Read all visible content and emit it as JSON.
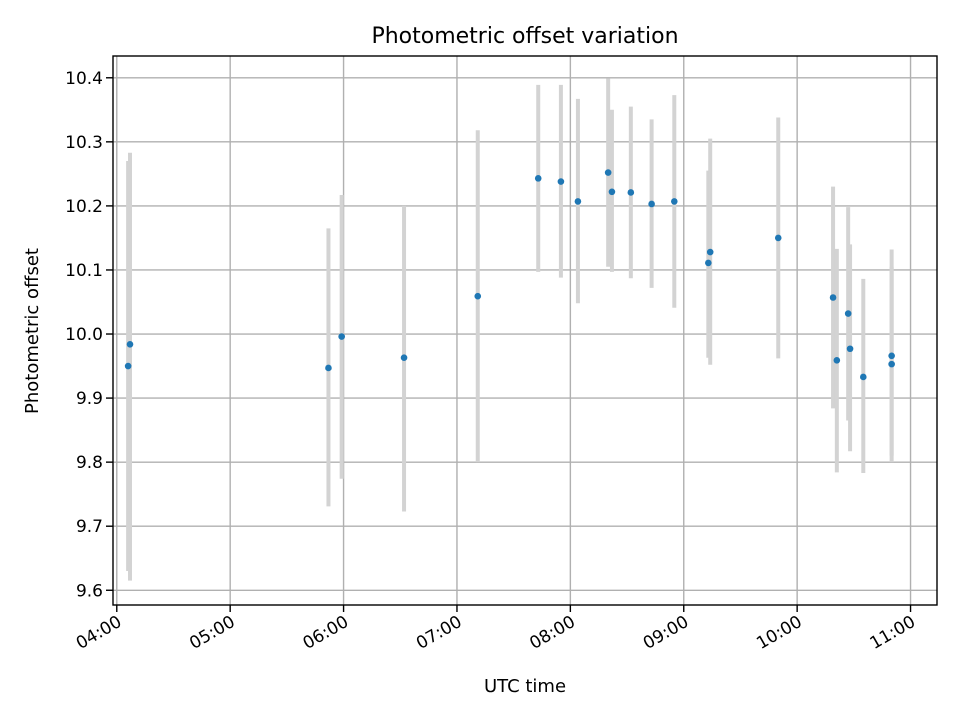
{
  "chart_data": {
    "type": "scatter",
    "title": "Photometric offset variation",
    "xlabel": "UTC time",
    "ylabel": "Photometric offset",
    "xlim": [
      "03:58",
      "11:14"
    ],
    "ylim": [
      9.577,
      10.434
    ],
    "grid": true,
    "xticks": [
      "04:00",
      "05:00",
      "06:00",
      "07:00",
      "08:00",
      "09:00",
      "10:00",
      "11:00"
    ],
    "yticks": [
      "9.6",
      "9.7",
      "9.8",
      "9.9",
      "10.0",
      "10.1",
      "10.2",
      "10.3",
      "10.4"
    ],
    "series": [
      {
        "marker_color": "#1f77b4",
        "errorbar_color": "#d3d3d3",
        "points": [
          {
            "x": "04:06",
            "y": 9.95,
            "ylo": 9.63,
            "yhi": 10.27
          },
          {
            "x": "04:07",
            "y": 9.984,
            "ylo": 9.615,
            "yhi": 10.283
          },
          {
            "x": "05:52",
            "y": 9.947,
            "ylo": 9.731,
            "yhi": 10.165
          },
          {
            "x": "05:59",
            "y": 9.996,
            "ylo": 9.774,
            "yhi": 10.217
          },
          {
            "x": "06:32",
            "y": 9.963,
            "ylo": 9.723,
            "yhi": 10.2
          },
          {
            "x": "07:11",
            "y": 10.059,
            "ylo": 9.8,
            "yhi": 10.318
          },
          {
            "x": "07:43",
            "y": 10.243,
            "ylo": 10.097,
            "yhi": 10.389
          },
          {
            "x": "07:55",
            "y": 10.238,
            "ylo": 10.088,
            "yhi": 10.389
          },
          {
            "x": "08:04",
            "y": 10.207,
            "ylo": 10.048,
            "yhi": 10.367
          },
          {
            "x": "08:20",
            "y": 10.252,
            "ylo": 10.105,
            "yhi": 10.399
          },
          {
            "x": "08:22",
            "y": 10.222,
            "ylo": 10.097,
            "yhi": 10.35
          },
          {
            "x": "08:32",
            "y": 10.221,
            "ylo": 10.087,
            "yhi": 10.355
          },
          {
            "x": "08:43",
            "y": 10.203,
            "ylo": 10.072,
            "yhi": 10.335
          },
          {
            "x": "08:55",
            "y": 10.207,
            "ylo": 10.041,
            "yhi": 10.373
          },
          {
            "x": "09:13",
            "y": 10.111,
            "ylo": 9.963,
            "yhi": 10.255
          },
          {
            "x": "09:14",
            "y": 10.128,
            "ylo": 9.952,
            "yhi": 10.305
          },
          {
            "x": "09:50",
            "y": 10.15,
            "ylo": 9.962,
            "yhi": 10.338
          },
          {
            "x": "10:19",
            "y": 10.057,
            "ylo": 9.884,
            "yhi": 10.23
          },
          {
            "x": "10:21",
            "y": 9.959,
            "ylo": 9.784,
            "yhi": 10.133
          },
          {
            "x": "10:27",
            "y": 10.032,
            "ylo": 9.865,
            "yhi": 10.198
          },
          {
            "x": "10:28",
            "y": 9.977,
            "ylo": 9.817,
            "yhi": 10.14
          },
          {
            "x": "10:35",
            "y": 9.933,
            "ylo": 9.783,
            "yhi": 10.086
          },
          {
            "x": "10:50",
            "y": 9.953,
            "ylo": 9.8,
            "yhi": 10.105
          },
          {
            "x": "10:50",
            "y": 9.966,
            "ylo": 9.81,
            "yhi": 10.132
          }
        ]
      }
    ]
  }
}
